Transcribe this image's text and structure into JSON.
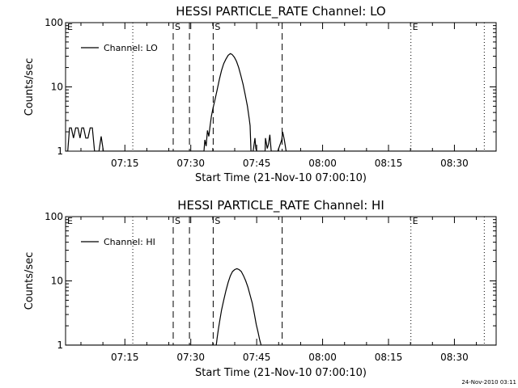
{
  "footer": {
    "timestamp": "24-Nov-2010 03:11"
  },
  "chart_data": [
    {
      "type": "line",
      "title": "HESSI PARTICLE_RATE Channel: LO",
      "xlabel": "Start Time (21-Nov-10 07:00:10)",
      "ylabel": "Counts/sec",
      "xlim": [
        1.5,
        99.5
      ],
      "ylim": [
        1,
        100
      ],
      "yscale": "log",
      "x_unit": "minutes after 07:00:00",
      "xticks": [
        {
          "value": 15,
          "label": "07:15"
        },
        {
          "value": 30,
          "label": "07:30"
        },
        {
          "value": 45,
          "label": "07:45"
        },
        {
          "value": 60,
          "label": "08:00"
        },
        {
          "value": 75,
          "label": "08:15"
        },
        {
          "value": 90,
          "label": "08:30"
        }
      ],
      "yticks": [
        {
          "value": 1,
          "label": "1"
        },
        {
          "value": 10,
          "label": "10"
        },
        {
          "value": 100,
          "label": "100"
        }
      ],
      "legend": "top-left",
      "series": [
        {
          "name": "Channel: LO",
          "x": [
            1.5,
            2.0,
            2.4,
            2.8,
            3.3,
            3.8,
            4.3,
            4.8,
            5.2,
            5.6,
            6.1,
            6.6,
            7.1,
            7.6,
            8.1,
            8.6,
            9.1,
            9.6,
            10.1,
            10.6,
            14.5,
            20.0,
            25.0,
            30.0,
            33.0,
            33.2,
            33.5,
            33.8,
            34.1,
            34.4,
            34.7,
            35.0,
            35.5,
            36.0,
            36.5,
            37.0,
            37.5,
            38.0,
            38.5,
            39.0,
            39.4,
            39.9,
            40.4,
            40.9,
            41.4,
            41.9,
            42.4,
            42.9,
            43.3,
            43.5,
            43.7,
            44.2,
            44.6,
            44.8,
            45.0,
            45.2,
            45.6,
            46.3,
            46.9,
            47.0,
            47.4,
            47.7,
            48.0,
            48.3,
            48.9,
            49.8,
            50.7,
            50.9,
            51.3,
            51.7,
            52.0,
            52.3,
            55.0,
            70.0,
            85.0,
            99.5
          ],
          "y": [
            1,
            1,
            2.3,
            2.3,
            1.6,
            2.3,
            2.3,
            1.6,
            2.3,
            2.3,
            1.6,
            1.6,
            2.3,
            2.3,
            1,
            1,
            1,
            1.7,
            1,
            1,
            1,
            1,
            1,
            1,
            1,
            1.5,
            1.2,
            2.1,
            1.7,
            2.5,
            3.5,
            4.5,
            6.3,
            9,
            13,
            18,
            23,
            27,
            31,
            33,
            32,
            29,
            25,
            20,
            15,
            11,
            7.5,
            5,
            3.2,
            2.5,
            1,
            1,
            1.6,
            1.1,
            1,
            1,
            1,
            1,
            1,
            1.6,
            1.1,
            1.3,
            1.8,
            1,
            1,
            1,
            1.5,
            2,
            1.5,
            1,
            1,
            1,
            1,
            1,
            1,
            1
          ]
        }
      ],
      "vertical_markers": [
        {
          "x": 16.8,
          "style": "dotted"
        },
        {
          "x": 26.0,
          "style": "dashed",
          "label": "S"
        },
        {
          "x": 29.7,
          "style": "dashed"
        },
        {
          "x": 35.1,
          "style": "dashed",
          "label": "S"
        },
        {
          "x": 50.8,
          "style": "dashed"
        },
        {
          "x": 80.1,
          "style": "dotted",
          "label": "E"
        },
        {
          "x": 96.8,
          "style": "dotted"
        }
      ],
      "corner_label": "E"
    },
    {
      "type": "line",
      "title": "HESSI PARTICLE_RATE Channel: HI",
      "xlabel": "Start Time (21-Nov-10 07:00:10)",
      "ylabel": "Counts/sec",
      "xlim": [
        1.5,
        99.5
      ],
      "ylim": [
        1,
        100
      ],
      "yscale": "log",
      "x_unit": "minutes after 07:00:00",
      "xticks": [
        {
          "value": 15,
          "label": "07:15"
        },
        {
          "value": 30,
          "label": "07:30"
        },
        {
          "value": 45,
          "label": "07:45"
        },
        {
          "value": 60,
          "label": "08:00"
        },
        {
          "value": 75,
          "label": "08:15"
        },
        {
          "value": 90,
          "label": "08:30"
        }
      ],
      "yticks": [
        {
          "value": 1,
          "label": "1"
        },
        {
          "value": 10,
          "label": "10"
        },
        {
          "value": 100,
          "label": "100"
        }
      ],
      "legend": "top-left",
      "series": [
        {
          "name": "Channel: HI",
          "x": [
            1.5,
            10.0,
            20.0,
            30.0,
            35.8,
            36.0,
            36.3,
            36.6,
            37.0,
            37.5,
            38.0,
            38.5,
            39.0,
            39.5,
            40.0,
            40.5,
            41.0,
            41.5,
            42.0,
            42.5,
            43.0,
            43.5,
            44.0,
            44.5,
            44.9,
            45.3,
            45.7,
            46.0,
            46.3,
            60.0,
            80.0,
            99.5
          ],
          "y": [
            1,
            1,
            1,
            1,
            1,
            1.3,
            1.8,
            2.4,
            3.5,
            5,
            7,
            9.5,
            12,
            14,
            15,
            15.5,
            15,
            14,
            12,
            10,
            8,
            6,
            4.5,
            3,
            2.1,
            1.6,
            1.2,
            1,
            1,
            1,
            1,
            1
          ]
        }
      ],
      "vertical_markers": [
        {
          "x": 16.8,
          "style": "dotted"
        },
        {
          "x": 26.0,
          "style": "dashed",
          "label": "S"
        },
        {
          "x": 29.7,
          "style": "dashed"
        },
        {
          "x": 35.1,
          "style": "dashed",
          "label": "S"
        },
        {
          "x": 50.8,
          "style": "dashed"
        },
        {
          "x": 80.1,
          "style": "dotted",
          "label": "E"
        },
        {
          "x": 96.8,
          "style": "dotted"
        }
      ],
      "corner_label": "E"
    }
  ]
}
